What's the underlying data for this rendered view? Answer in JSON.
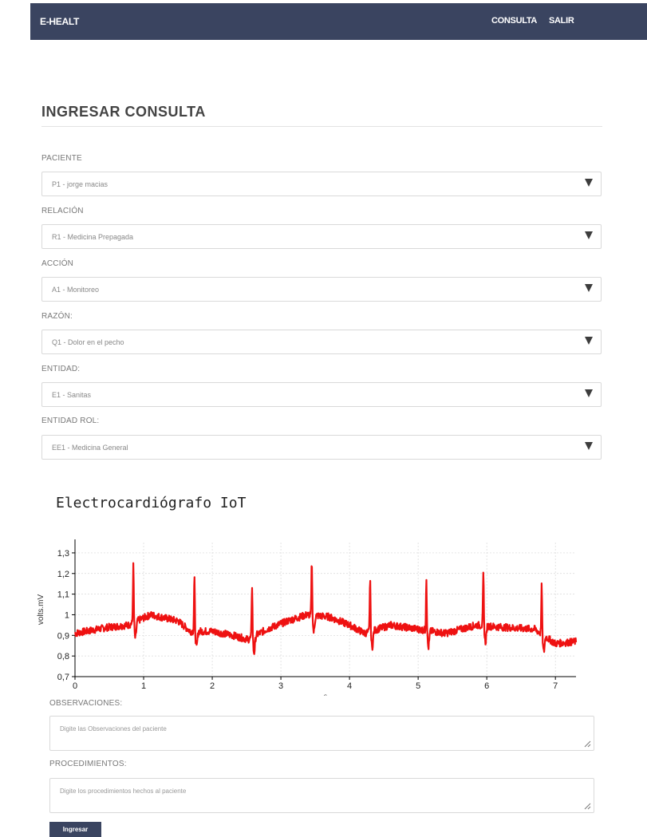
{
  "navbar": {
    "brand": "E-HEALT",
    "links": [
      "CONSULTA",
      "SALIR"
    ],
    "background": "#3a4460"
  },
  "form": {
    "title": "INGRESAR CONSULTA",
    "fields": [
      {
        "label": "PACIENTE",
        "value": "P1 - jorge macias"
      },
      {
        "label": "RELACIÓN",
        "value": "R1 - Medicina Prepagada"
      },
      {
        "label": "ACCIÓN",
        "value": "A1 - Monitoreo"
      },
      {
        "label": "RAZÓN:",
        "value": "Q1 - Dolor en el pecho"
      },
      {
        "label": "ENTIDAD:",
        "value": "E1 - Sanitas"
      },
      {
        "label": "ENTIDAD ROL:",
        "value": "EE1 - Medicina General"
      }
    ],
    "observaciones": {
      "label": "OBSERVACIONES:",
      "placeholder": "Digite las Observaciones del paciente"
    },
    "procedimientos": {
      "label": "PROCEDIMIENTOS:",
      "placeholder": "Digite los procedimientos hechos al paciente"
    },
    "submit_label": "Ingresar"
  },
  "chart_data": {
    "type": "line",
    "title": "Electrocardiógrafo IoT",
    "xlabel": "s",
    "ylabel": "volts.mV",
    "xlim": [
      0,
      7.3
    ],
    "ylim": [
      0.7,
      1.35
    ],
    "x_ticks": [
      "0",
      "1",
      "2",
      "3",
      "4",
      "5",
      "6",
      "7"
    ],
    "y_ticks": [
      "0,7",
      "0,8",
      "0,9",
      "1",
      "1,1",
      "1,2",
      "1,3"
    ],
    "grid": true,
    "series_color": "#ee1111",
    "r_peaks": [
      {
        "t": 0.85,
        "peak": 1.24
      },
      {
        "t": 1.74,
        "peak": 1.18
      },
      {
        "t": 2.58,
        "peak": 1.15
      },
      {
        "t": 3.45,
        "peak": 1.26
      },
      {
        "t": 4.3,
        "peak": 1.18
      },
      {
        "t": 5.12,
        "peak": 1.18
      },
      {
        "t": 5.95,
        "peak": 1.2
      },
      {
        "t": 6.8,
        "peak": 1.14
      }
    ],
    "baseline": [
      {
        "x": 0.0,
        "y": 0.91
      },
      {
        "x": 0.5,
        "y": 0.94
      },
      {
        "x": 0.78,
        "y": 0.95
      },
      {
        "x": 1.1,
        "y": 1.0
      },
      {
        "x": 1.5,
        "y": 0.97
      },
      {
        "x": 1.68,
        "y": 0.92
      },
      {
        "x": 2.0,
        "y": 0.92
      },
      {
        "x": 2.3,
        "y": 0.9
      },
      {
        "x": 2.52,
        "y": 0.88
      },
      {
        "x": 2.8,
        "y": 0.93
      },
      {
        "x": 3.1,
        "y": 0.97
      },
      {
        "x": 3.38,
        "y": 1.0
      },
      {
        "x": 3.7,
        "y": 0.99
      },
      {
        "x": 4.0,
        "y": 0.95
      },
      {
        "x": 4.22,
        "y": 0.91
      },
      {
        "x": 4.6,
        "y": 0.95
      },
      {
        "x": 5.0,
        "y": 0.93
      },
      {
        "x": 5.4,
        "y": 0.91
      },
      {
        "x": 5.85,
        "y": 0.95
      },
      {
        "x": 6.2,
        "y": 0.94
      },
      {
        "x": 6.7,
        "y": 0.93
      },
      {
        "x": 7.0,
        "y": 0.86
      },
      {
        "x": 7.3,
        "y": 0.87
      }
    ]
  }
}
